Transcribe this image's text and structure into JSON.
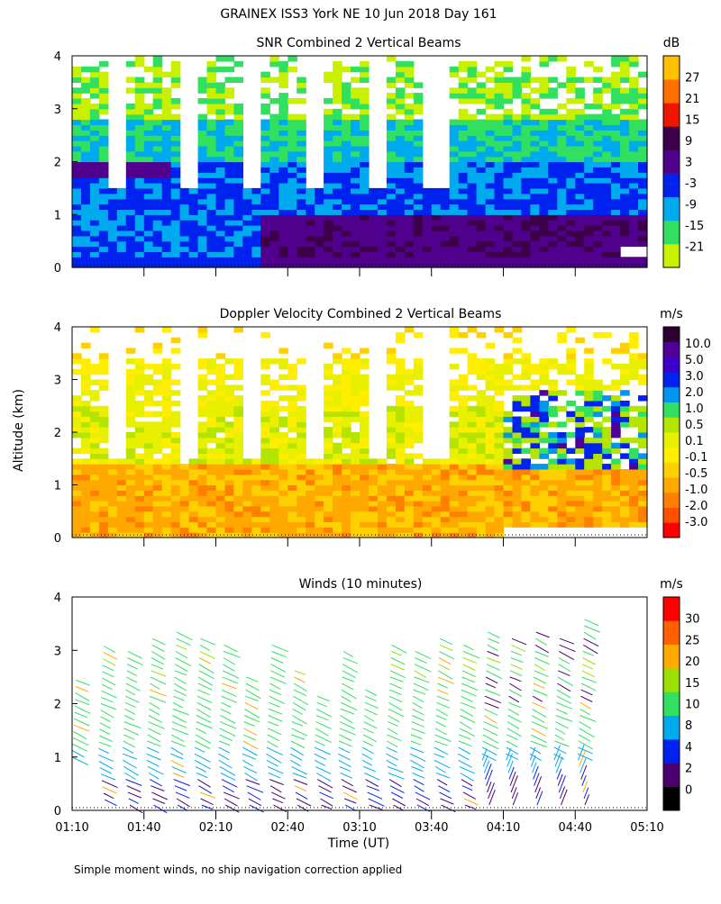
{
  "title": "GRAINEX ISS3 York NE  10 Jun 2018 Day 161",
  "y_axis_label": "Altitude (km)",
  "x_axis_label": "Time (UT)",
  "footnote": "Simple moment winds, no ship navigation correction applied",
  "colors": {
    "snr": [
      "#c8f000",
      "#32e060",
      "#00aaee",
      "#0022ee",
      "#50008c",
      "#3c0048",
      "#ee1800",
      "#ff7000",
      "#ffc000"
    ],
    "doppler": [
      "#ff0000",
      "#ff5000",
      "#ff8000",
      "#ffa800",
      "#ffd000",
      "#ffee00",
      "#e8f000",
      "#b4e400",
      "#32e060",
      "#0096ee",
      "#0022ee",
      "#3c00c8",
      "#500098",
      "#2c0030"
    ],
    "winds": [
      "#000000",
      "#4c0070",
      "#0022ee",
      "#00aaee",
      "#32e060",
      "#9de000",
      "#ffaa00",
      "#ff6000",
      "#ff0000"
    ]
  },
  "chart_data": [
    {
      "type": "heatmap",
      "title": "SNR Combined 2 Vertical Beams",
      "ylabel": "Altitude (km)",
      "ylim": [
        0,
        4
      ],
      "yticks": [
        "0",
        "1",
        "2",
        "3",
        "4"
      ],
      "xlim": [
        "01:10",
        "05:10"
      ],
      "colorbar_unit": "dB",
      "colorbar_ticks": [
        "27",
        "21",
        "15",
        "9",
        "3",
        "-3",
        "-9",
        "-15",
        "-21"
      ]
    },
    {
      "type": "heatmap",
      "title": "Doppler Velocity Combined 2 Vertical Beams",
      "ylabel": "Altitude (km)",
      "ylim": [
        0,
        4
      ],
      "yticks": [
        "0",
        "1",
        "2",
        "3",
        "4"
      ],
      "xlim": [
        "01:10",
        "05:10"
      ],
      "colorbar_unit": "m/s",
      "colorbar_ticks": [
        "10.0",
        "5.0",
        "3.0",
        "2.0",
        "1.0",
        "0.5",
        "0.1",
        "-0.1",
        "-0.5",
        "-1.0",
        "-2.0",
        "-3.0"
      ]
    },
    {
      "type": "scatter",
      "title": "Winds (10 minutes)",
      "xlabel": "Time (UT)",
      "ylabel": "Altitude (km)",
      "ylim": [
        0,
        4
      ],
      "yticks": [
        "0",
        "1",
        "2",
        "3",
        "4"
      ],
      "xticks": [
        "01:10",
        "01:40",
        "02:10",
        "02:40",
        "03:10",
        "03:40",
        "04:10",
        "04:40",
        "05:10"
      ],
      "colorbar_unit": "m/s",
      "colorbar_ticks": [
        "30",
        "25",
        "20",
        "15",
        "10",
        "8",
        "4",
        "2",
        "0"
      ],
      "barb_columns_min": [
        80,
        90,
        100,
        110,
        120,
        130,
        140,
        150,
        160,
        170,
        180,
        190,
        200,
        210,
        220,
        230,
        240,
        250,
        260,
        270,
        280,
        290
      ],
      "barb_tops_km": [
        2.5,
        3.2,
        3.0,
        3.3,
        3.35,
        3.3,
        3.2,
        2.6,
        3.2,
        2.7,
        2.2,
        3.1,
        2.3,
        3.2,
        3.0,
        3.3,
        3.2,
        3.4,
        3.3,
        3.4,
        3.3,
        3.6
      ],
      "barb_bottoms_km": [
        1.0,
        0.2,
        0.1,
        0.1,
        0.1,
        0.1,
        0.1,
        0.1,
        0.1,
        0.1,
        0.1,
        0.1,
        0.1,
        0.1,
        0.1,
        0.1,
        0.1,
        0.1,
        0.1,
        0.1,
        0.1,
        0.1
      ]
    }
  ]
}
